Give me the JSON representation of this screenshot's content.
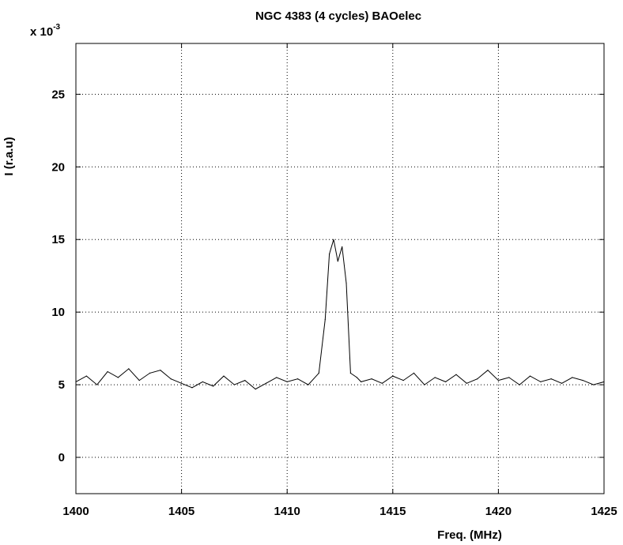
{
  "chart_data": {
    "type": "line",
    "title": "NGC 4383 (4 cycles) BAOelec",
    "xlabel": "Freq. (MHz)",
    "ylabel": "I (r.a.u)",
    "y_multiplier": {
      "base": "x 10",
      "exponent": "-3"
    },
    "xlim": [
      1400,
      1425
    ],
    "ylim": [
      -2.5,
      28.5
    ],
    "x_ticks": [
      {
        "value": 1400,
        "label": "1400"
      },
      {
        "value": 1405,
        "label": "1405"
      },
      {
        "value": 1410,
        "label": "1410"
      },
      {
        "value": 1415,
        "label": "1415"
      },
      {
        "value": 1420,
        "label": "1420"
      },
      {
        "value": 1425,
        "label": "1425"
      }
    ],
    "y_ticks": [
      {
        "value": 0,
        "label": "0"
      },
      {
        "value": 5,
        "label": "5"
      },
      {
        "value": 10,
        "label": "10"
      },
      {
        "value": 15,
        "label": "15"
      },
      {
        "value": 20,
        "label": "20"
      },
      {
        "value": 25,
        "label": "25"
      }
    ],
    "grid": true,
    "series": [
      {
        "color": "#000000",
        "x": [
          1400.0,
          1400.5,
          1401.0,
          1401.5,
          1402.0,
          1402.5,
          1403.0,
          1403.5,
          1404.0,
          1404.5,
          1405.0,
          1405.5,
          1406.0,
          1406.5,
          1407.0,
          1407.5,
          1408.0,
          1408.5,
          1409.0,
          1409.5,
          1410.0,
          1410.5,
          1411.0,
          1411.5,
          1411.8,
          1412.0,
          1412.2,
          1412.4,
          1412.6,
          1412.8,
          1413.0,
          1413.3,
          1413.5,
          1414.0,
          1414.5,
          1415.0,
          1415.5,
          1416.0,
          1416.5,
          1417.0,
          1417.5,
          1418.0,
          1418.5,
          1419.0,
          1419.5,
          1420.0,
          1420.5,
          1421.0,
          1421.5,
          1422.0,
          1422.5,
          1423.0,
          1423.5,
          1424.0,
          1424.5,
          1425.0
        ],
        "y": [
          5.2,
          5.6,
          5.0,
          5.9,
          5.5,
          6.1,
          5.3,
          5.8,
          6.0,
          5.4,
          5.1,
          4.8,
          5.2,
          4.9,
          5.6,
          5.0,
          5.3,
          4.7,
          5.1,
          5.5,
          5.2,
          5.4,
          5.0,
          5.8,
          9.5,
          14.0,
          15.0,
          13.5,
          14.5,
          12.0,
          5.8,
          5.5,
          5.2,
          5.4,
          5.1,
          5.6,
          5.3,
          5.8,
          5.0,
          5.5,
          5.2,
          5.7,
          5.1,
          5.4,
          6.0,
          5.3,
          5.5,
          5.0,
          5.6,
          5.2,
          5.4,
          5.1,
          5.5,
          5.3,
          5.0,
          5.2
        ]
      }
    ]
  }
}
